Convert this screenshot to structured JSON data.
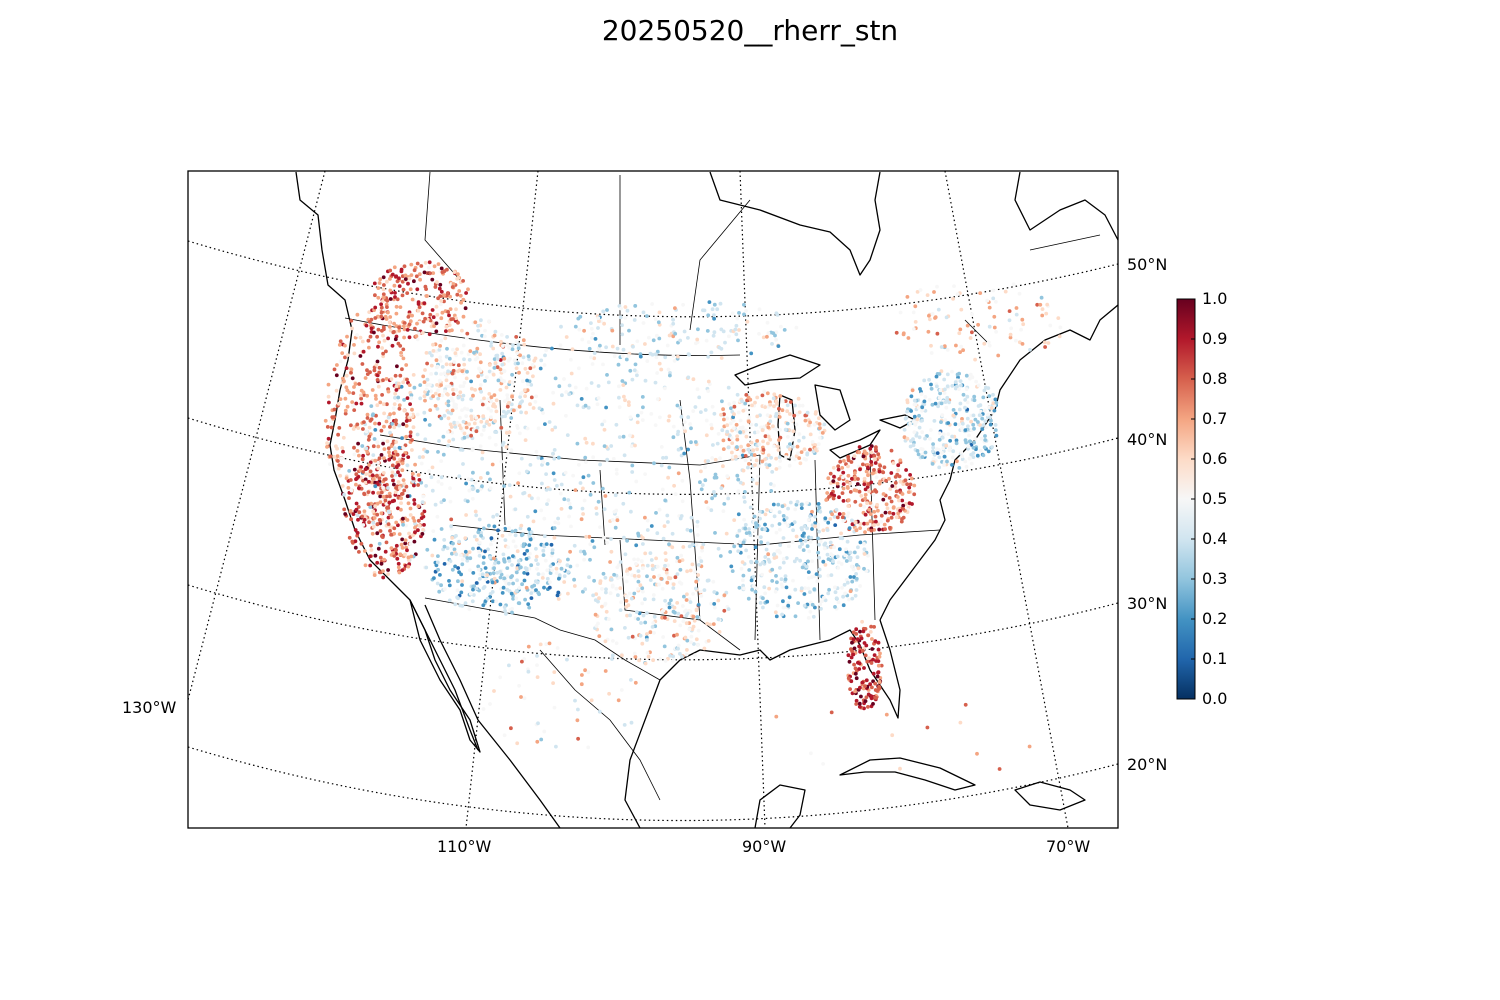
{
  "title": "20250520__rherr_stn",
  "map": {
    "projection": "lambert-conformal-conic",
    "lat_labels": [
      "50°N",
      "40°N",
      "30°N",
      "20°N"
    ],
    "lon_labels_bottom": [
      "110°W",
      "90°W",
      "70°W"
    ],
    "lon_label_left": "130°W"
  },
  "colorbar": {
    "colormap": "RdBu_r",
    "ticks": [
      "1.0",
      "0.9",
      "0.8",
      "0.7",
      "0.6",
      "0.5",
      "0.4",
      "0.3",
      "0.2",
      "0.1",
      "0.0"
    ],
    "range": [
      0.0,
      1.0
    ],
    "colors": [
      "#053061",
      "#2166ac",
      "#4393c3",
      "#92c5de",
      "#d1e5f0",
      "#f7f7f7",
      "#fddbc7",
      "#f4a582",
      "#d6604d",
      "#b2182b",
      "#67001f"
    ]
  },
  "stations": {
    "count_shown": "approximately 9000 scattered station markers",
    "value_field": "rherr",
    "regional_tendency": [
      {
        "region": "Pacific coast / California",
        "typical_value": 0.8
      },
      {
        "region": "Florida peninsula",
        "typical_value": 0.85
      },
      {
        "region": "Southwest desert",
        "typical_value": 0.35
      },
      {
        "region": "Northern Rockies / Alberta",
        "typical_value": 0.8
      },
      {
        "region": "Appalachians / Virginia",
        "typical_value": 0.85
      },
      {
        "region": "Great Plains",
        "typical_value": 0.45
      },
      {
        "region": "Northeast",
        "typical_value": 0.35
      },
      {
        "region": "Texas",
        "typical_value": 0.5
      }
    ]
  }
}
